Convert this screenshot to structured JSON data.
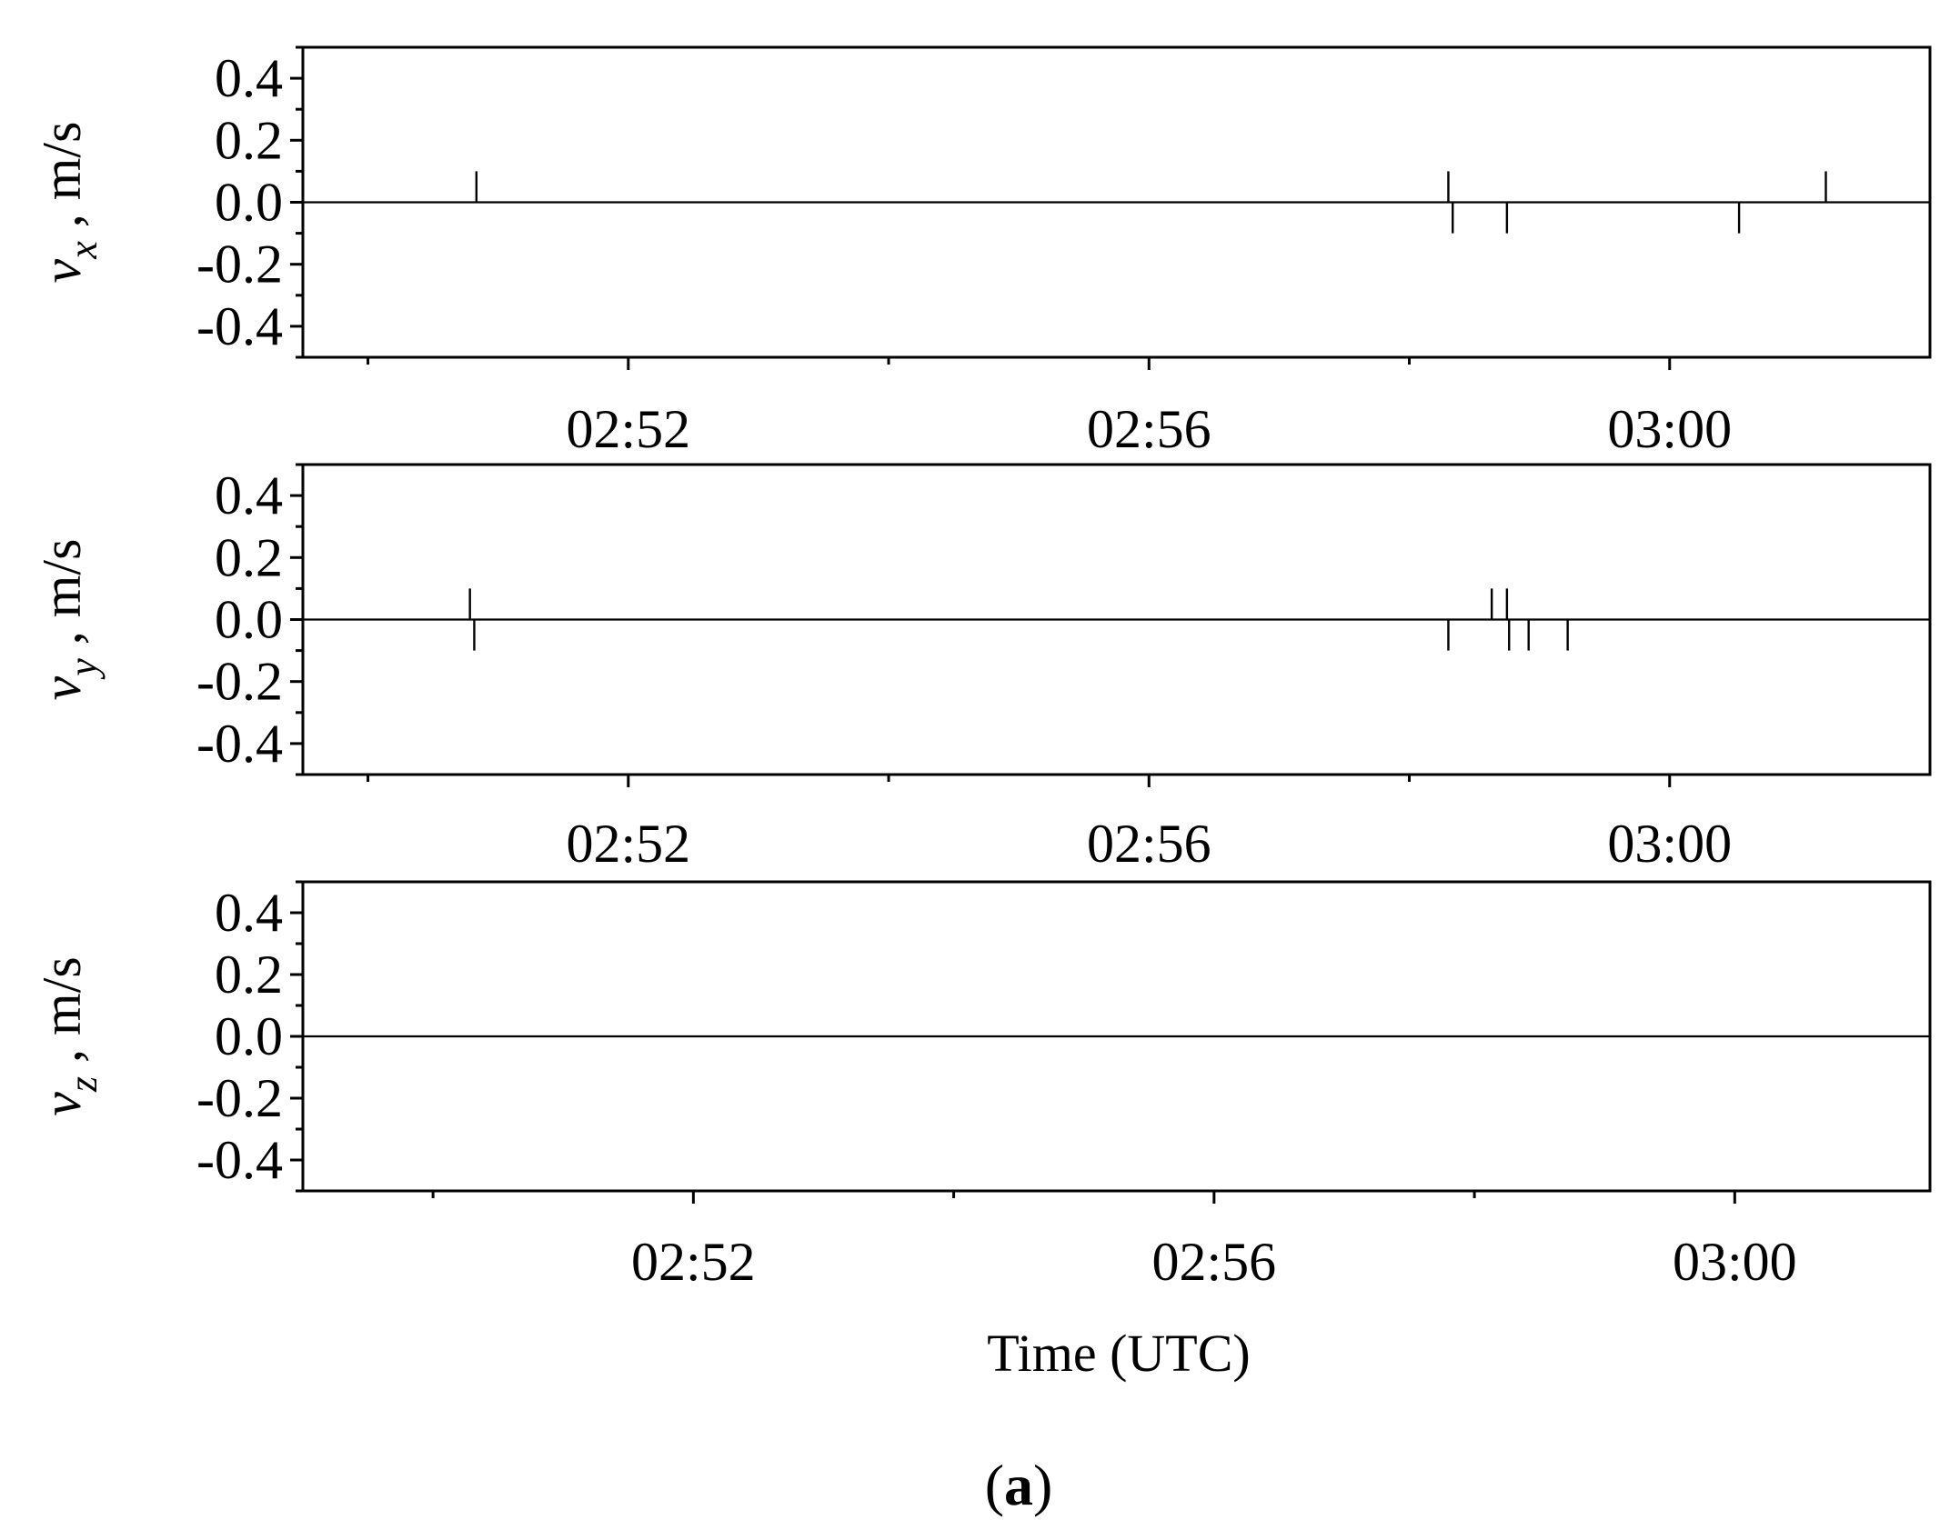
{
  "figure": {
    "x_axis_label": "Time (UTC)",
    "panel_label_open": "(",
    "panel_label_letter": "a",
    "panel_label_close": ")"
  },
  "chart_data": [
    {
      "type": "line",
      "ylabel_var": "v",
      "ylabel_sub": "x",
      "ylabel_unit": ", m/s",
      "xlim": [
        "02:49:30",
        "03:02:00"
      ],
      "ylim": [
        -0.5,
        0.5
      ],
      "x_ticks": [
        "02:52",
        "02:56",
        "03:00"
      ],
      "x_minor_ticks": [
        "02:50",
        "02:54",
        "02:58",
        "03:02"
      ],
      "y_ticks": [
        0.4,
        0.2,
        0.0,
        -0.2,
        -0.4
      ],
      "y_tick_labels": [
        "0.4",
        "0.2",
        "0.0",
        "-0.2",
        "-0.4"
      ],
      "baseline": 0.0,
      "spikes": [
        {
          "t": "02:50:50",
          "v": 0.1
        },
        {
          "t": "02:58:18",
          "v": 0.1
        },
        {
          "t": "02:58:20",
          "v": -0.1
        },
        {
          "t": "02:58:45",
          "v": -0.1
        },
        {
          "t": "03:00:32",
          "v": -0.1
        },
        {
          "t": "03:01:12",
          "v": 0.1
        }
      ],
      "grid": false
    },
    {
      "type": "line",
      "ylabel_var": "v",
      "ylabel_sub": "y",
      "ylabel_unit": ", m/s",
      "xlim": [
        "02:49:30",
        "03:02:00"
      ],
      "ylim": [
        -0.5,
        0.5
      ],
      "x_ticks": [
        "02:52",
        "02:56",
        "03:00"
      ],
      "x_minor_ticks": [
        "02:50",
        "02:54",
        "02:58",
        "03:02"
      ],
      "y_ticks": [
        0.4,
        0.2,
        0.0,
        -0.2,
        -0.4
      ],
      "y_tick_labels": [
        "0.4",
        "0.2",
        "0.0",
        "-0.2",
        "-0.4"
      ],
      "baseline": 0.0,
      "spikes": [
        {
          "t": "02:50:47",
          "v": 0.1
        },
        {
          "t": "02:50:49",
          "v": -0.1
        },
        {
          "t": "02:58:18",
          "v": -0.1
        },
        {
          "t": "02:58:38",
          "v": 0.1
        },
        {
          "t": "02:58:45",
          "v": 0.1
        },
        {
          "t": "02:58:46",
          "v": -0.1
        },
        {
          "t": "02:58:55",
          "v": -0.1
        },
        {
          "t": "02:59:13",
          "v": -0.1
        }
      ],
      "grid": false
    },
    {
      "type": "line",
      "ylabel_var": "v",
      "ylabel_sub": "z",
      "ylabel_unit": ", m/s",
      "xlim": [
        "02:49:00",
        "03:01:30"
      ],
      "ylim": [
        -0.5,
        0.5
      ],
      "x_ticks": [
        "02:52",
        "02:56",
        "03:00"
      ],
      "x_minor_ticks": [
        "02:50",
        "02:54",
        "02:58"
      ],
      "y_ticks": [
        0.4,
        0.2,
        0.0,
        -0.2,
        -0.4
      ],
      "y_tick_labels": [
        "0.4",
        "0.2",
        "0.0",
        "-0.2",
        "-0.4"
      ],
      "baseline": 0.0,
      "spikes": [],
      "grid": false
    }
  ]
}
